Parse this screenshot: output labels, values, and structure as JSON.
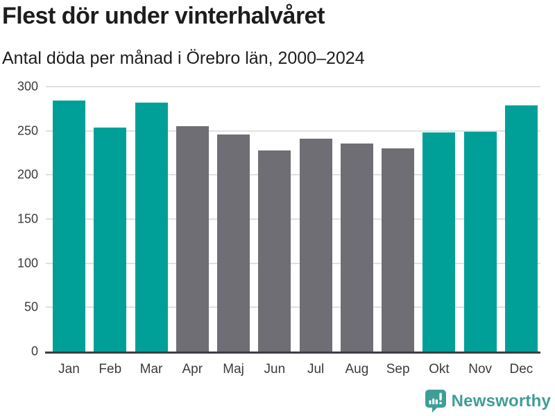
{
  "header": {
    "title": "Flest dör under vinterhalvåret",
    "subtitle": "Antal döda per månad i Örebro län, 2000–2024"
  },
  "chart_data": {
    "type": "bar",
    "title": "Flest dör under vinterhalvåret",
    "subtitle": "Antal döda per månad i Örebro län, 2000–2024",
    "categories": [
      "Jan",
      "Feb",
      "Mar",
      "Apr",
      "Maj",
      "Jun",
      "Jul",
      "Aug",
      "Sep",
      "Okt",
      "Nov",
      "Dec"
    ],
    "values": [
      284,
      254,
      282,
      255,
      246,
      228,
      241,
      236,
      230,
      248,
      249,
      279
    ],
    "bar_color_keys": [
      "winter",
      "winter",
      "winter",
      "summer",
      "summer",
      "summer",
      "summer",
      "summer",
      "summer",
      "winter",
      "winter",
      "winter"
    ],
    "palette": {
      "winter": "#00a099",
      "summer": "#6f6e74"
    },
    "xlabel": "",
    "ylabel": "",
    "ylim": [
      0,
      300
    ],
    "yticks": [
      0,
      50,
      100,
      150,
      200,
      250,
      300
    ],
    "grid": true,
    "legend": false
  },
  "footer": {
    "brand_label": "Newsworthy",
    "brand_color": "#3f9d97",
    "logo_icon": "bar-chart-speech-bubble-icon"
  },
  "colors": {
    "background": "#ffffff",
    "title_text": "#1d1d1b",
    "axis_text": "#3c3c3c",
    "gridline": "#e0e0e0",
    "axis_line": "#3d3d44"
  }
}
